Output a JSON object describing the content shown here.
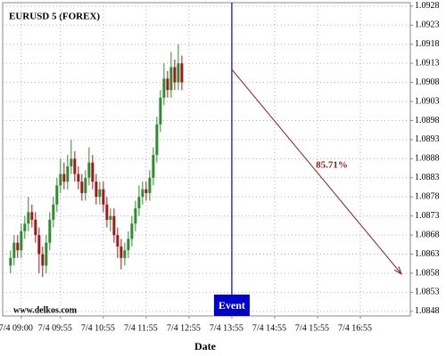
{
  "chart_data": {
    "type": "candlestick",
    "title": "EURUSD 5 (FOREX)",
    "x_label": "Date",
    "watermark": "www.delkos.com",
    "up_color": "#2e8b2e",
    "down_color": "#a01818",
    "grid": true,
    "x": [
      -15,
      -10,
      -5,
      0,
      5,
      10,
      15,
      20,
      25,
      30,
      35,
      40,
      45,
      50,
      55,
      60,
      65,
      70,
      75,
      80,
      85,
      90,
      95,
      100,
      105,
      110,
      115,
      120,
      125,
      130,
      135,
      140,
      145,
      150,
      155,
      160,
      165,
      170,
      175,
      180,
      185,
      190,
      195,
      200,
      205,
      210,
      215,
      220,
      225
    ],
    "open": [
      1.086,
      1.0862,
      1.0866,
      1.0864,
      1.0869,
      1.0871,
      1.0874,
      1.0872,
      1.0868,
      1.0863,
      1.086,
      1.0866,
      1.0872,
      1.0876,
      1.0881,
      1.0884,
      1.0882,
      1.0886,
      1.0888,
      1.0884,
      1.0882,
      1.0879,
      1.0883,
      1.0887,
      1.0882,
      1.0878,
      1.088,
      1.0876,
      1.0872,
      1.0873,
      1.0868,
      1.0865,
      1.0862,
      1.0864,
      1.0867,
      1.0871,
      1.0875,
      1.0878,
      1.088,
      1.0879,
      1.0883,
      1.0889,
      1.0897,
      1.0904,
      1.0909,
      1.0906,
      1.0912,
      1.0908,
      1.0913
    ],
    "high": [
      1.0864,
      1.0868,
      1.0868,
      1.0871,
      1.0873,
      1.0878,
      1.0876,
      1.0874,
      1.087,
      1.0865,
      1.0868,
      1.0874,
      1.0878,
      1.0883,
      1.0888,
      1.0887,
      1.0889,
      1.0893,
      1.089,
      1.0886,
      1.0884,
      1.0885,
      1.0891,
      1.0889,
      1.0884,
      1.0882,
      1.0882,
      1.0878,
      1.0875,
      1.0875,
      1.087,
      1.0867,
      1.0866,
      1.0869,
      1.0873,
      1.0877,
      1.0881,
      1.0882,
      1.0882,
      1.0885,
      1.0891,
      1.0899,
      1.0906,
      1.0913,
      1.0911,
      1.0916,
      1.0914,
      1.0918,
      1.0915
    ],
    "low": [
      1.0858,
      1.086,
      1.0862,
      1.0862,
      1.0867,
      1.0869,
      1.087,
      1.0866,
      1.0858,
      1.0857,
      1.0858,
      1.0864,
      1.087,
      1.0874,
      1.0879,
      1.088,
      1.088,
      1.0884,
      1.0882,
      1.088,
      1.0877,
      1.0877,
      1.0881,
      1.088,
      1.0876,
      1.0876,
      1.0874,
      1.087,
      1.0869,
      1.0866,
      1.0862,
      1.0859,
      1.086,
      1.0862,
      1.0865,
      1.0869,
      1.0873,
      1.0876,
      1.0877,
      1.0877,
      1.0881,
      1.0887,
      1.0895,
      1.0902,
      1.0904,
      1.0904,
      1.0906,
      1.0906,
      1.0906
    ],
    "close": [
      1.0862,
      1.0866,
      1.0864,
      1.0869,
      1.0871,
      1.0874,
      1.0872,
      1.0868,
      1.0863,
      1.086,
      1.0866,
      1.0872,
      1.0876,
      1.0881,
      1.0884,
      1.0882,
      1.0886,
      1.0888,
      1.0884,
      1.0882,
      1.0879,
      1.0883,
      1.0887,
      1.0882,
      1.0878,
      1.088,
      1.0876,
      1.0872,
      1.0873,
      1.0868,
      1.0865,
      1.0862,
      1.0864,
      1.0867,
      1.0871,
      1.0875,
      1.0878,
      1.088,
      1.0879,
      1.0883,
      1.0889,
      1.0897,
      1.0904,
      1.0909,
      1.0906,
      1.0912,
      1.0908,
      1.0913,
      1.0908
    ],
    "xlim": [
      -26,
      545
    ],
    "xticks": [
      {
        "value": 0,
        "label": "7/4 09:00"
      },
      {
        "value": 55,
        "label": "7/4 09:55"
      },
      {
        "value": 115,
        "label": "7/4 10:55"
      },
      {
        "value": 175,
        "label": "7/4 11:55"
      },
      {
        "value": 235,
        "label": "7/4 12:55"
      },
      {
        "value": 295,
        "label": "7/4 13:55"
      },
      {
        "value": 355,
        "label": "7/4 14:55"
      },
      {
        "value": 415,
        "label": "7/4 15:55"
      },
      {
        "value": 475,
        "label": "7/4 16:55"
      }
    ],
    "ylim": [
      1.08468,
      1.09289
    ],
    "yticks": [
      1.0848,
      1.0853,
      1.0858,
      1.0863,
      1.0868,
      1.0873,
      1.0878,
      1.0883,
      1.0888,
      1.0893,
      1.0898,
      1.0903,
      1.0908,
      1.0913,
      1.0918,
      1.0923,
      1.0928
    ],
    "event": {
      "x": 295,
      "label": "Event",
      "color": "#0000cc"
    },
    "forecast": {
      "x": [
        295,
        532.5
      ],
      "y": [
        1.09114,
        1.08578
      ],
      "label": "85.71%",
      "color": "#8b1a1a"
    }
  }
}
